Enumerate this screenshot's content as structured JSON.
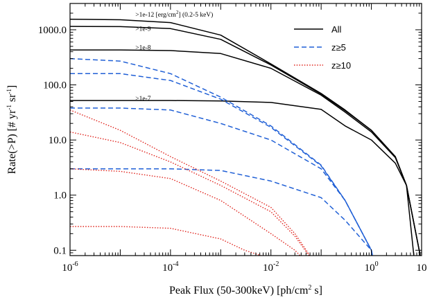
{
  "chart_data": {
    "type": "line",
    "xlabel_parts": [
      "Peak Flux (50-300keV) [ph/cm",
      "2",
      " s]"
    ],
    "ylabel_parts": [
      "Rate(>P) [# yr",
      "-1",
      " sr",
      "-1",
      "]"
    ],
    "xscale": "log",
    "yscale": "log",
    "xlim": [
      1e-06,
      10
    ],
    "ylim": [
      0.08,
      3000
    ],
    "grid": false,
    "legend_position": "top-right",
    "x_ticks": [
      {
        "value": 1e-06,
        "base": "10",
        "exp": "-6"
      },
      {
        "value": 0.0001,
        "base": "10",
        "exp": "-4"
      },
      {
        "value": 0.01,
        "base": "10",
        "exp": "-2"
      },
      {
        "value": 1,
        "base": "10",
        "exp": "0"
      },
      {
        "value": 10,
        "base": "10",
        "exp": ""
      }
    ],
    "y_ticks": [
      {
        "value": 1000,
        "label": "1000.0"
      },
      {
        "value": 100,
        "label": "100.0"
      },
      {
        "value": 10,
        "label": "10.0"
      },
      {
        "value": 1,
        "label": "1.0"
      },
      {
        "value": 0.1,
        "label": "0.1"
      }
    ],
    "legend": [
      {
        "label": "All",
        "style": "solid",
        "color": "#000000"
      },
      {
        "label": "z≥5",
        "style": "dashed",
        "color": "#1f5fd6"
      },
      {
        "label": "z≥10",
        "style": "dotted",
        "color": "#e0231c"
      }
    ],
    "annotations": [
      {
        "text": ">1e-12 [erg/cm",
        "sup": "2",
        "text2": "] (0.2-5 keV)",
        "x": 2e-05,
        "y": 1900
      },
      {
        "text": ">1e-9",
        "x": 2e-05,
        "y": 1050
      },
      {
        "text": ">1e-8",
        "x": 2e-05,
        "y": 480
      },
      {
        "text": ">1e-7",
        "x": 2e-05,
        "y": 57
      }
    ],
    "series": [
      {
        "group": "All",
        "style": "solid",
        "color": "#000000",
        "x": [
          1e-06,
          1e-05,
          0.0001,
          0.001,
          0.01,
          0.1,
          0.3,
          1,
          3,
          5,
          10
        ],
        "y": [
          1550,
          1520,
          1350,
          800,
          240,
          70,
          35,
          15,
          5.0,
          1.5,
          0.06
        ]
      },
      {
        "group": "All",
        "style": "solid",
        "color": "#000000",
        "x": [
          1e-06,
          1e-05,
          0.0001,
          0.001,
          0.01,
          0.1,
          0.3,
          1,
          3,
          5,
          10
        ],
        "y": [
          1150,
          1140,
          1050,
          670,
          230,
          68,
          34,
          15,
          5.0,
          1.5,
          0.06
        ]
      },
      {
        "group": "All",
        "style": "solid",
        "color": "#000000",
        "x": [
          1e-06,
          1e-05,
          0.0001,
          0.001,
          0.01,
          0.1,
          0.3,
          1,
          3,
          5,
          10
        ],
        "y": [
          430,
          430,
          420,
          370,
          200,
          65,
          32,
          14,
          4.8,
          1.5,
          0.06
        ]
      },
      {
        "group": "All",
        "style": "solid",
        "color": "#000000",
        "x": [
          1e-06,
          1e-05,
          0.0001,
          0.001,
          0.01,
          0.1,
          0.3,
          1,
          3,
          5,
          7,
          10
        ],
        "y": [
          52,
          52,
          52,
          51,
          48,
          36,
          18,
          10,
          3.8,
          1.5,
          0.08,
          0.03
        ]
      },
      {
        "group": "z≥5",
        "style": "dashed",
        "color": "#1f5fd6",
        "x": [
          1e-06,
          1e-05,
          0.0001,
          0.001,
          0.01,
          0.1,
          0.3,
          1,
          1.3
        ],
        "y": [
          300,
          270,
          160,
          60,
          18,
          3.5,
          0.8,
          0.1,
          0.03
        ]
      },
      {
        "group": "z≥5",
        "style": "dashed",
        "color": "#1f5fd6",
        "x": [
          1e-06,
          1e-05,
          0.0001,
          0.001,
          0.01,
          0.1,
          0.3,
          1,
          1.3
        ],
        "y": [
          160,
          160,
          120,
          55,
          17,
          3.4,
          0.8,
          0.1,
          0.03
        ]
      },
      {
        "group": "z≥5",
        "style": "dashed",
        "color": "#1f5fd6",
        "x": [
          1e-06,
          1e-05,
          0.0001,
          0.001,
          0.01,
          0.1,
          0.3,
          1,
          1.3
        ],
        "y": [
          38,
          38,
          35,
          20,
          10,
          3.0,
          0.8,
          0.1,
          0.03
        ]
      },
      {
        "group": "z≥5",
        "style": "dashed",
        "color": "#1f5fd6",
        "x": [
          1e-06,
          1e-05,
          0.0001,
          0.001,
          0.01,
          0.1,
          0.3,
          1,
          1.3
        ],
        "y": [
          3.0,
          3.0,
          3.0,
          2.8,
          1.8,
          0.9,
          0.35,
          0.1,
          0.03
        ]
      },
      {
        "group": "z≥10",
        "style": "dotted",
        "color": "#e0231c",
        "x": [
          1e-06,
          1e-05,
          0.0001,
          0.001,
          0.01,
          0.03,
          0.1
        ],
        "y": [
          35,
          15,
          5,
          1.8,
          0.6,
          0.2,
          0.04
        ]
      },
      {
        "group": "z≥10",
        "style": "dotted",
        "color": "#e0231c",
        "x": [
          1e-06,
          1e-05,
          0.0001,
          0.001,
          0.01,
          0.03,
          0.1
        ],
        "y": [
          14,
          9,
          4,
          1.5,
          0.5,
          0.18,
          0.04
        ]
      },
      {
        "group": "z≥10",
        "style": "dotted",
        "color": "#e0231c",
        "x": [
          1e-06,
          1e-05,
          0.0001,
          0.001,
          0.01,
          0.03,
          0.08
        ],
        "y": [
          3.0,
          2.7,
          2.0,
          0.8,
          0.2,
          0.1,
          0.04
        ]
      },
      {
        "group": "z≥10",
        "style": "dotted",
        "color": "#e0231c",
        "x": [
          1e-06,
          1e-05,
          0.0001,
          0.001,
          0.003,
          0.01,
          0.02
        ],
        "y": [
          0.27,
          0.27,
          0.25,
          0.16,
          0.1,
          0.07,
          0.04
        ]
      }
    ]
  }
}
